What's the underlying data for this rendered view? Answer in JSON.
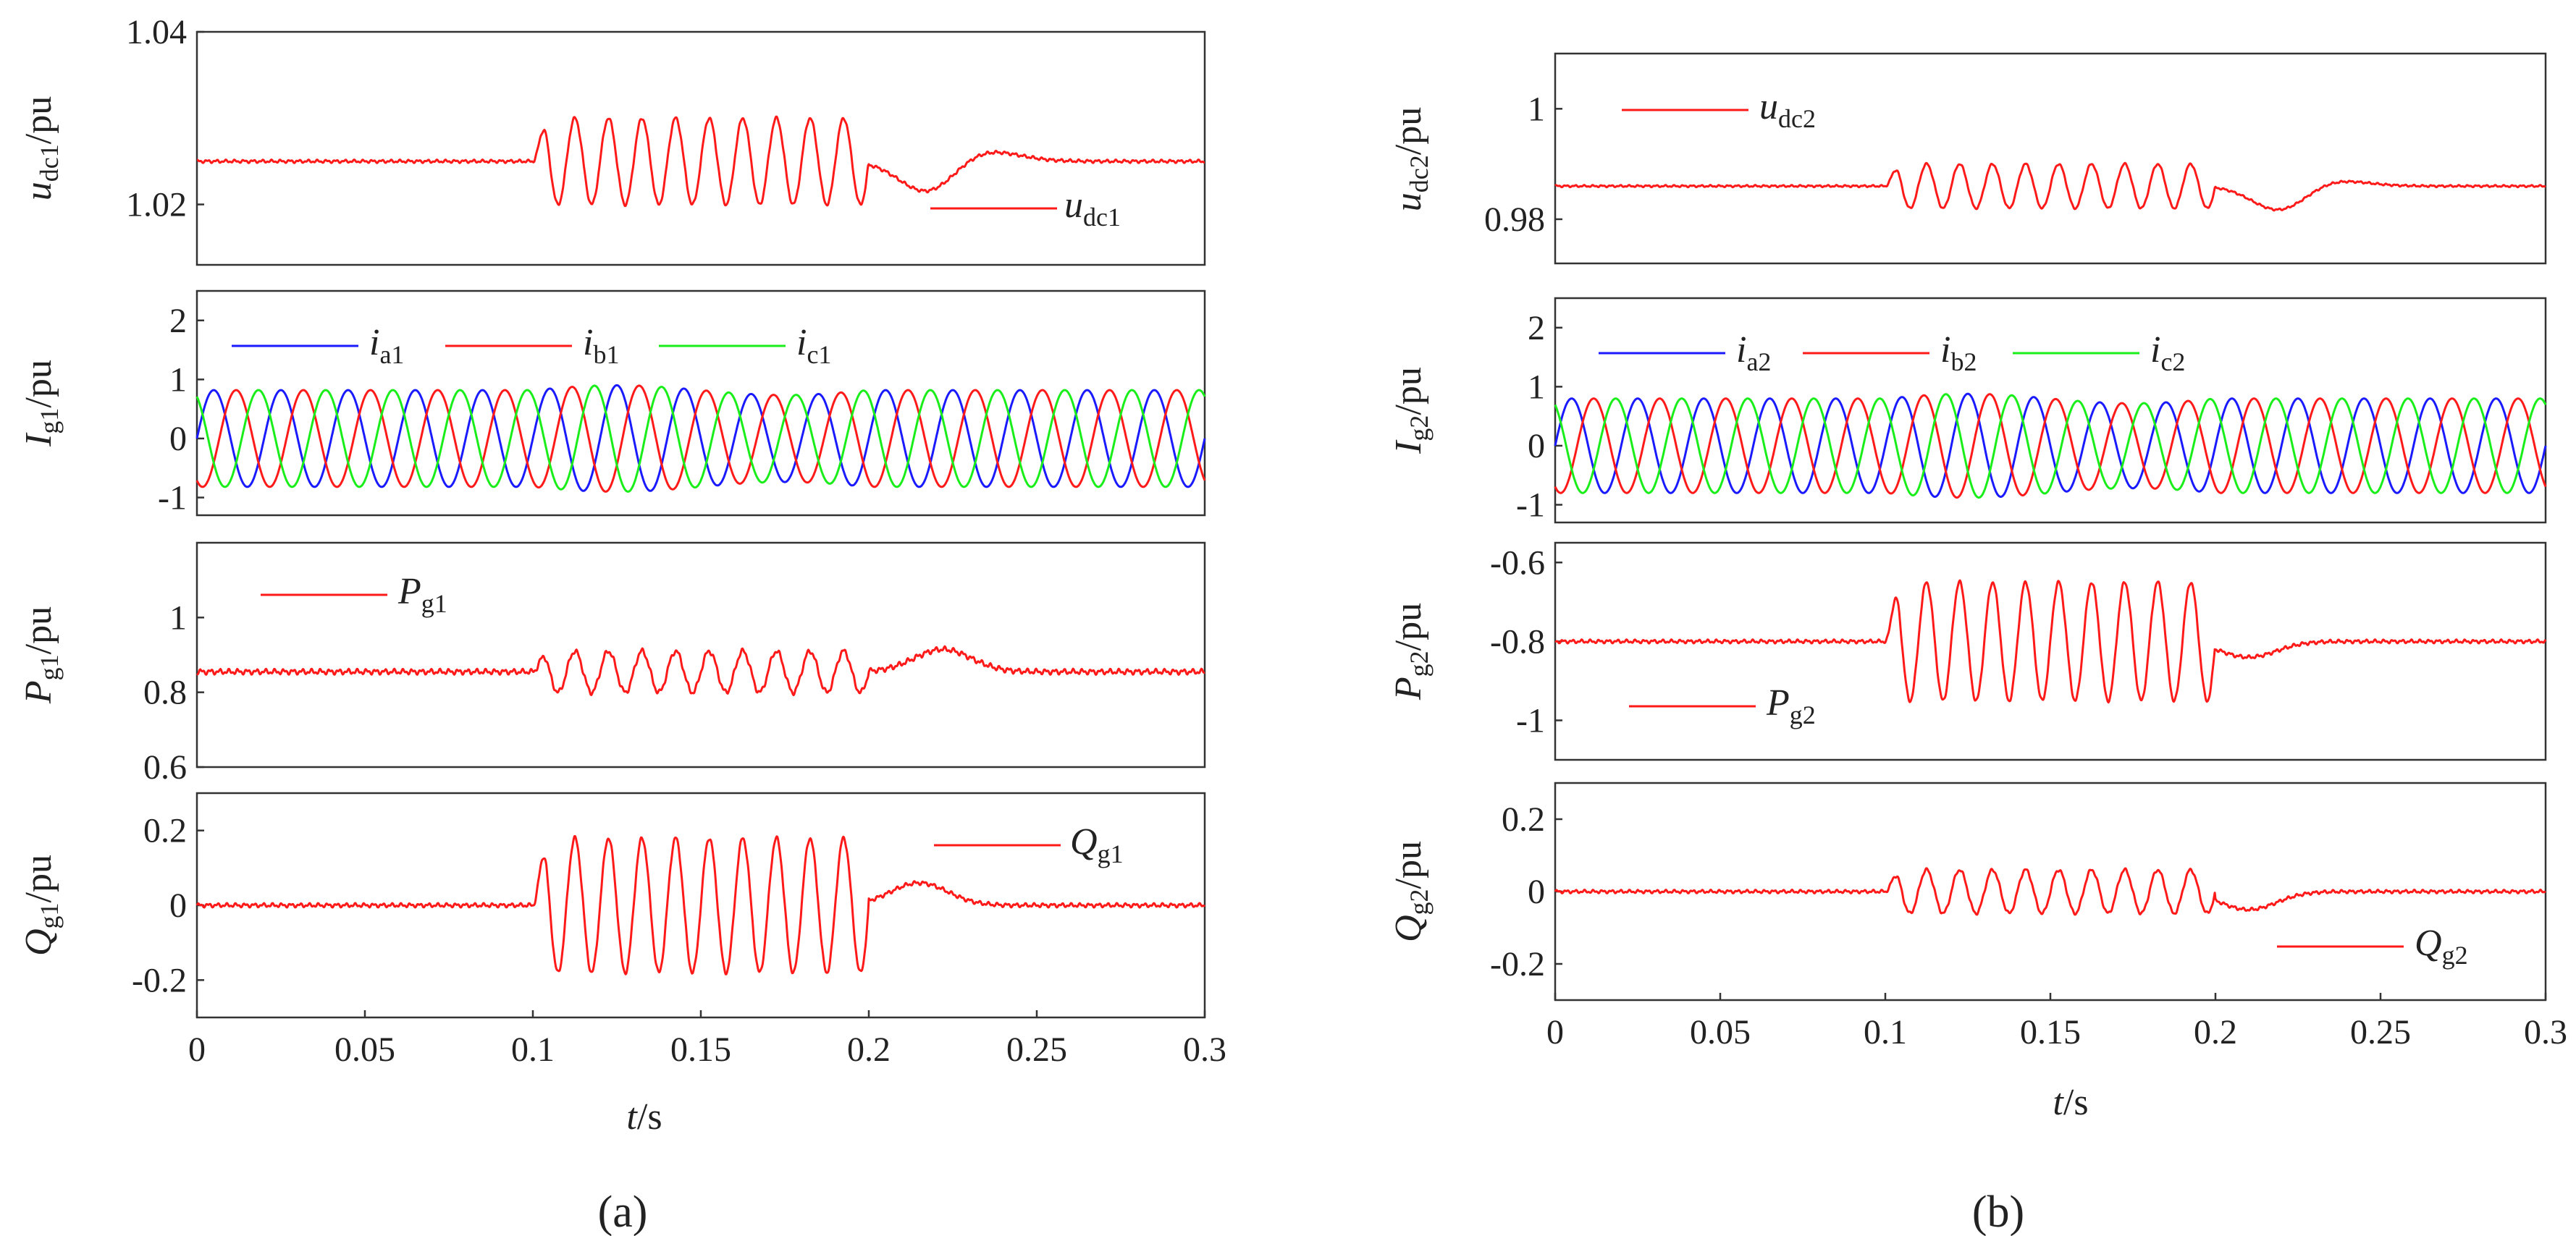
{
  "figure": {
    "xaxis": {
      "label": "t/s",
      "ticks": [
        "0",
        "0.05",
        "0.1",
        "0.15",
        "0.2",
        "0.25",
        "0.3"
      ],
      "range": [
        0,
        0.3
      ]
    },
    "sub_labels": [
      "(a)",
      "(b)"
    ],
    "colors": {
      "red": "#ff1a1a",
      "blue": "#1a1aff",
      "green": "#1aee1a",
      "frame": "#333333"
    }
  },
  "chart_data": [
    {
      "id": "a1",
      "type": "line",
      "title": "",
      "ylabel": "udc1/pu",
      "ylim": [
        1.013,
        1.04
      ],
      "yticks": [
        1.02,
        1.04
      ],
      "ytick_labels": [
        "1.02",
        "1.04"
      ],
      "legend": {
        "placement": "right",
        "entries": [
          {
            "name": "udc1",
            "color": "#ff1a1a"
          }
        ]
      },
      "series": [
        {
          "name": "udc1",
          "kind": "dc",
          "base": 1.025,
          "osc_start": 0.1,
          "osc_end": 0.2,
          "amp": 0.005,
          "freq": 100,
          "dip": -0.004,
          "dip_t": 0.218,
          "bump": 0.0015,
          "bump_t": 0.232,
          "noise": 0.0002
        }
      ]
    },
    {
      "id": "a2",
      "type": "line",
      "title": "",
      "ylabel": "Ig1/pu",
      "ylim": [
        -1.3,
        2.5
      ],
      "yticks": [
        -1,
        0,
        1,
        2
      ],
      "ytick_labels": [
        "-1",
        "0",
        "1",
        "2"
      ],
      "legend": {
        "placement": "top",
        "entries": [
          {
            "name": "ia1",
            "color": "#1a1aff"
          },
          {
            "name": "ib1",
            "color": "#ff1a1a"
          },
          {
            "name": "ic1",
            "color": "#1aee1a"
          }
        ]
      },
      "series": [
        {
          "name": "ia1",
          "kind": "ac",
          "amp": 0.82,
          "freq": 100,
          "phase": 0
        },
        {
          "name": "ib1",
          "kind": "ac",
          "amp": 0.82,
          "freq": 100,
          "phase": -2.094
        },
        {
          "name": "ic1",
          "kind": "ac",
          "amp": 0.82,
          "freq": 100,
          "phase": 2.094
        }
      ]
    },
    {
      "id": "a3",
      "type": "line",
      "title": "",
      "ylabel": "Pg1/pu",
      "ylim": [
        0.6,
        1.2
      ],
      "yticks": [
        0.6,
        0.8,
        1
      ],
      "ytick_labels": [
        "0.6",
        "0.8",
        "1"
      ],
      "legend": {
        "placement": "top-left",
        "entries": [
          {
            "name": "Pg1",
            "color": "#ff1a1a"
          }
        ]
      },
      "series": [
        {
          "name": "Pg1",
          "kind": "dc",
          "base": 0.855,
          "osc_start": 0.1,
          "osc_end": 0.2,
          "amp": 0.055,
          "freq": 100,
          "dip": 0.06,
          "dip_t": 0.222,
          "bump": 0,
          "bump_t": 0.24,
          "noise": 0.008
        }
      ]
    },
    {
      "id": "a4",
      "type": "line",
      "title": "",
      "ylabel": "Qg1/pu",
      "ylim": [
        -0.3,
        0.3
      ],
      "yticks": [
        -0.2,
        0,
        0.2
      ],
      "ytick_labels": [
        "-0.2",
        "0",
        "0.2"
      ],
      "legend": {
        "placement": "top-right",
        "entries": [
          {
            "name": "Qg1",
            "color": "#ff1a1a"
          }
        ]
      },
      "series": [
        {
          "name": "Qg1",
          "kind": "dc",
          "base": 0,
          "osc_start": 0.1,
          "osc_end": 0.2,
          "amp": 0.18,
          "freq": 100,
          "dip": 0.06,
          "dip_t": 0.215,
          "bump": 0,
          "bump_t": 0.24,
          "noise": 0.006
        }
      ]
    },
    {
      "id": "b1",
      "type": "line",
      "title": "",
      "ylabel": "udc2/pu",
      "ylim": [
        0.972,
        1.01
      ],
      "yticks": [
        0.98,
        1
      ],
      "ytick_labels": [
        "0.98",
        "1"
      ],
      "legend": {
        "placement": "top-left",
        "entries": [
          {
            "name": "udc2",
            "color": "#ff1a1a"
          }
        ]
      },
      "series": [
        {
          "name": "udc2",
          "kind": "dc",
          "base": 0.986,
          "osc_start": 0.1,
          "osc_end": 0.2,
          "amp": 0.004,
          "freq": 100,
          "dip": -0.005,
          "dip_t": 0.22,
          "bump": 0.0015,
          "bump_t": 0.232,
          "noise": 0.0002
        }
      ]
    },
    {
      "id": "b2",
      "type": "line",
      "title": "",
      "ylabel": "Ig2/pu",
      "ylim": [
        -1.3,
        2.5
      ],
      "yticks": [
        -1,
        0,
        1,
        2
      ],
      "ytick_labels": [
        "-1",
        "0",
        "1",
        "2"
      ],
      "legend": {
        "placement": "top",
        "entries": [
          {
            "name": "ia2",
            "color": "#1a1aff"
          },
          {
            "name": "ib2",
            "color": "#ff1a1a"
          },
          {
            "name": "ic2",
            "color": "#1aee1a"
          }
        ]
      },
      "series": [
        {
          "name": "ia2",
          "kind": "ac",
          "amp": 0.8,
          "freq": 100,
          "phase": 0
        },
        {
          "name": "ib2",
          "kind": "ac",
          "amp": 0.8,
          "freq": 100,
          "phase": -2.094
        },
        {
          "name": "ic2",
          "kind": "ac",
          "amp": 0.8,
          "freq": 100,
          "phase": 2.094
        }
      ]
    },
    {
      "id": "b3",
      "type": "line",
      "title": "",
      "ylabel": "Pg2/pu",
      "ylim": [
        -1.1,
        -0.55
      ],
      "yticks": [
        -1,
        -0.8,
        -0.6
      ],
      "ytick_labels": [
        "-1",
        "-0.8",
        "-0.6"
      ],
      "legend": {
        "placement": "bottom-left",
        "entries": [
          {
            "name": "Pg2",
            "color": "#ff1a1a"
          }
        ]
      },
      "series": [
        {
          "name": "Pg2",
          "kind": "dc",
          "base": -0.8,
          "osc_start": 0.1,
          "osc_end": 0.2,
          "amp": 0.15,
          "freq": 100,
          "dip": -0.04,
          "dip_t": 0.21,
          "bump": 0,
          "bump_t": 0.24,
          "noise": 0.005
        }
      ]
    },
    {
      "id": "b4",
      "type": "line",
      "title": "",
      "ylabel": "Qg2/pu",
      "ylim": [
        -0.3,
        0.3
      ],
      "yticks": [
        -0.2,
        0,
        0.2
      ],
      "ytick_labels": [
        "-0.2",
        "0",
        "0.2"
      ],
      "legend": {
        "placement": "bottom-right",
        "entries": [
          {
            "name": "Qg2",
            "color": "#ff1a1a"
          }
        ]
      },
      "series": [
        {
          "name": "Qg2",
          "kind": "dc",
          "base": 0,
          "osc_start": 0.1,
          "osc_end": 0.2,
          "amp": 0.06,
          "freq": 100,
          "dip": -0.05,
          "dip_t": 0.21,
          "bump": 0,
          "bump_t": 0.24,
          "noise": 0.005
        }
      ]
    }
  ]
}
